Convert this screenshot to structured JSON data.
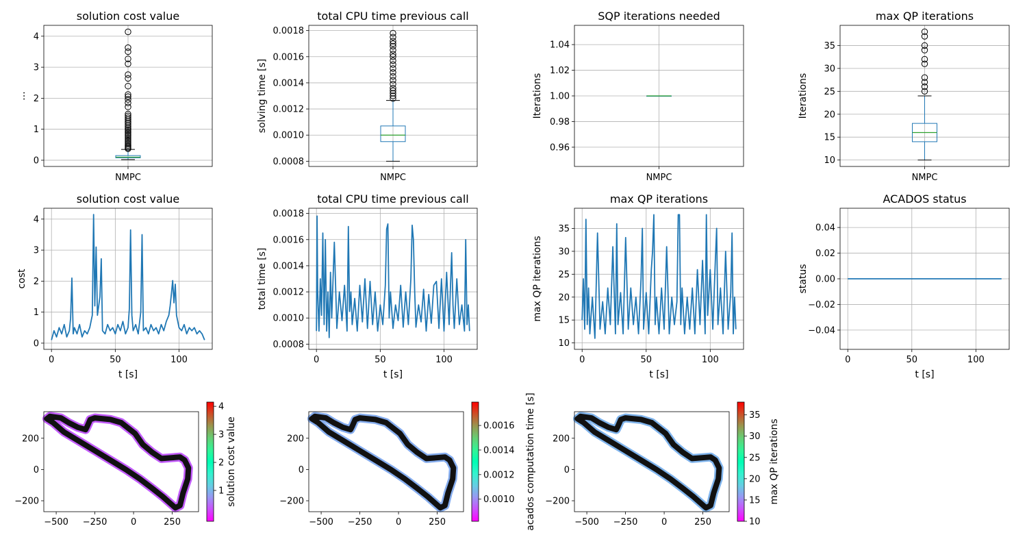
{
  "chart_data": [
    {
      "id": "box_cost",
      "type": "box",
      "title": "solution cost value",
      "xlabel": "",
      "ylabel": "...",
      "categories": [
        "NMPC"
      ],
      "ylim": [
        -0.2,
        4.35
      ],
      "yticks": [
        0,
        1,
        2,
        3,
        4
      ],
      "yticklabels": [
        "0",
        "1",
        "2",
        "3",
        "4"
      ],
      "box": {
        "whislo": 0.02,
        "q1": 0.08,
        "med": 0.1,
        "q3": 0.15,
        "whishi": 0.35
      },
      "fliers": [
        4.14,
        3.63,
        3.5,
        3.27,
        3.11,
        2.76,
        2.64,
        2.39,
        2.12,
        2.05,
        1.96,
        1.85,
        1.72,
        1.49,
        1.43,
        1.37,
        1.31,
        1.25,
        1.2,
        1.14,
        1.08,
        1.03,
        0.98,
        0.93,
        0.88,
        0.83,
        0.78,
        0.73,
        0.68,
        0.63,
        0.58,
        0.53,
        0.48,
        0.44,
        0.4,
        0.37
      ],
      "grid": true
    },
    {
      "id": "box_time",
      "type": "box",
      "title": "total CPU time previous call",
      "xlabel": "",
      "ylabel": "solving time [s]",
      "categories": [
        "NMPC"
      ],
      "ylim": [
        0.00076,
        0.00184
      ],
      "yticks": [
        0.0008,
        0.001,
        0.0012,
        0.0014,
        0.0016,
        0.0018
      ],
      "yticklabels": [
        "0.0008",
        "0.0010",
        "0.0012",
        "0.0014",
        "0.0016",
        "0.0018"
      ],
      "box": {
        "whislo": 0.0008,
        "q1": 0.00095,
        "med": 0.001,
        "q3": 0.00107,
        "whishi": 0.001265
      },
      "fliers": [
        0.00178,
        0.00175,
        0.00172,
        0.0017,
        0.00168,
        0.00165,
        0.00162,
        0.0016,
        0.00157,
        0.00154,
        0.00151,
        0.00148,
        0.00145,
        0.00142,
        0.00139,
        0.00136,
        0.00134,
        0.00132,
        0.0013,
        0.00128
      ],
      "grid": true
    },
    {
      "id": "box_sqp",
      "type": "box",
      "title": "SQP iterations needed",
      "xlabel": "",
      "ylabel": "Iterations",
      "categories": [
        "NMPC"
      ],
      "ylim": [
        0.945,
        1.055
      ],
      "yticks": [
        0.96,
        0.98,
        1.0,
        1.02,
        1.04
      ],
      "yticklabels": [
        "0.96",
        "0.98",
        "1.00",
        "1.02",
        "1.04"
      ],
      "box": {
        "whislo": 1.0,
        "q1": 1.0,
        "med": 1.0,
        "q3": 1.0,
        "whishi": 1.0
      },
      "fliers": [],
      "grid": true
    },
    {
      "id": "box_qp",
      "type": "box",
      "title": "max QP iterations",
      "xlabel": "",
      "ylabel": "Iterations",
      "categories": [
        "NMPC"
      ],
      "ylim": [
        8.6,
        39.4
      ],
      "yticks": [
        10,
        15,
        20,
        25,
        30,
        35
      ],
      "yticklabels": [
        "10",
        "15",
        "20",
        "25",
        "30",
        "35"
      ],
      "box": {
        "whislo": 10,
        "q1": 14,
        "med": 16,
        "q3": 18,
        "whishi": 24
      },
      "fliers": [
        38,
        37,
        35,
        34,
        32,
        31,
        28,
        27,
        26,
        25
      ],
      "grid": true
    },
    {
      "id": "line_cost",
      "type": "line",
      "title": "solution cost value",
      "xlabel": "t [s]",
      "ylabel": "cost",
      "xlim": [
        -6,
        126
      ],
      "xticks": [
        0,
        50,
        100
      ],
      "xticklabels": [
        "0",
        "50",
        "100"
      ],
      "ylim": [
        -0.2,
        4.35
      ],
      "yticks": [
        0,
        1,
        2,
        3,
        4
      ],
      "yticklabels": [
        "0",
        "1",
        "2",
        "3",
        "4"
      ],
      "grid": true,
      "series": [
        {
          "x": [
            0,
            2,
            4,
            6,
            8,
            10,
            12,
            14,
            15,
            16,
            17,
            18,
            20,
            22,
            24,
            26,
            28,
            30,
            32,
            33,
            34,
            35,
            36,
            38,
            39,
            40,
            42,
            44,
            46,
            48,
            50,
            52,
            54,
            56,
            58,
            60,
            61,
            62,
            63,
            64,
            66,
            68,
            70,
            71,
            72,
            74,
            76,
            78,
            80,
            82,
            84,
            86,
            88,
            90,
            92,
            93,
            94,
            95,
            96,
            97,
            98,
            100,
            102,
            104,
            106,
            108,
            110,
            112,
            114,
            116,
            118,
            120
          ],
          "y": [
            0.1,
            0.4,
            0.2,
            0.5,
            0.3,
            0.6,
            0.2,
            0.4,
            0.8,
            2.1,
            0.3,
            0.5,
            0.3,
            0.6,
            0.2,
            0.4,
            0.3,
            0.5,
            0.9,
            4.15,
            1.2,
            3.1,
            0.9,
            1.5,
            2.72,
            0.4,
            0.3,
            0.6,
            0.4,
            0.5,
            0.3,
            0.6,
            0.4,
            0.7,
            0.3,
            0.5,
            1.1,
            3.65,
            0.9,
            0.4,
            0.6,
            0.3,
            1.0,
            3.5,
            0.4,
            0.5,
            0.3,
            0.6,
            0.4,
            0.5,
            0.3,
            0.6,
            0.4,
            0.7,
            0.9,
            1.2,
            1.6,
            2.02,
            1.3,
            1.9,
            0.9,
            0.5,
            0.4,
            0.6,
            0.3,
            0.5,
            0.4,
            0.5,
            0.3,
            0.4,
            0.3,
            0.1
          ]
        }
      ]
    },
    {
      "id": "line_time",
      "type": "line",
      "title": "total CPU time previous call",
      "xlabel": "t [s]",
      "ylabel": "total time [s]",
      "xlim": [
        -6,
        126
      ],
      "xticks": [
        0,
        50,
        100
      ],
      "xticklabels": [
        "0",
        "50",
        "100"
      ],
      "ylim": [
        0.00076,
        0.00184
      ],
      "yticks": [
        0.0008,
        0.001,
        0.0012,
        0.0014,
        0.0016,
        0.0018
      ],
      "yticklabels": [
        "0.0008",
        "0.0010",
        "0.0012",
        "0.0014",
        "0.0016",
        "0.0018"
      ],
      "grid": true,
      "series": [
        {
          "x": [
            0,
            0.5,
            1,
            2,
            3,
            4,
            5,
            6,
            7,
            8,
            9,
            10,
            11,
            12,
            14,
            16,
            18,
            20,
            22,
            24,
            25,
            26,
            27,
            28,
            30,
            32,
            34,
            36,
            38,
            40,
            42,
            44,
            46,
            48,
            50,
            52,
            54,
            55,
            56,
            57,
            58,
            60,
            62,
            64,
            66,
            68,
            70,
            72,
            74,
            75,
            76,
            77,
            78,
            80,
            82,
            84,
            86,
            88,
            90,
            92,
            94,
            96,
            98,
            100,
            102,
            104,
            106,
            107,
            108,
            110,
            112,
            114,
            116,
            117,
            118,
            119,
            120
          ],
          "y": [
            0.0009,
            0.00178,
            0.0012,
            0.0009,
            0.0013,
            0.00102,
            0.00165,
            0.00095,
            0.0016,
            0.0009,
            0.0012,
            0.00085,
            0.00135,
            0.001,
            0.00158,
            0.00092,
            0.0012,
            0.00098,
            0.00125,
            0.0009,
            0.0017,
            0.00105,
            0.0012,
            0.00095,
            0.00115,
            0.0009,
            0.00125,
            0.00097,
            0.0013,
            0.00092,
            0.00128,
            0.00095,
            0.0012,
            0.0009,
            0.0011,
            0.00095,
            0.00125,
            0.00168,
            0.00172,
            0.001,
            0.0012,
            0.00092,
            0.0011,
            0.00098,
            0.00125,
            0.00093,
            0.0012,
            0.00095,
            0.0013,
            0.00171,
            0.0016,
            0.0012,
            0.00093,
            0.0011,
            0.00097,
            0.00122,
            0.0009,
            0.00118,
            0.00096,
            0.00125,
            0.00128,
            0.00092,
            0.0013,
            0.0009,
            0.00135,
            0.00095,
            0.0015,
            0.0011,
            0.00092,
            0.0013,
            0.00095,
            0.0011,
            0.0009,
            0.0016,
            0.00095,
            0.0011,
            0.0009
          ]
        }
      ]
    },
    {
      "id": "line_qp",
      "type": "line",
      "title": "max QP iterations",
      "xlabel": "t [s]",
      "ylabel": "max QP iterations",
      "xlim": [
        -6,
        126
      ],
      "xticks": [
        0,
        50,
        100
      ],
      "xticklabels": [
        "0",
        "50",
        "100"
      ],
      "ylim": [
        8.6,
        39.4
      ],
      "yticks": [
        10,
        15,
        20,
        25,
        30,
        35
      ],
      "yticklabels": [
        "10",
        "15",
        "20",
        "25",
        "30",
        "35"
      ],
      "grid": true,
      "series": [
        {
          "x": [
            0,
            1,
            2,
            3,
            4,
            5,
            6,
            8,
            10,
            12,
            14,
            16,
            18,
            20,
            22,
            24,
            26,
            27,
            28,
            30,
            32,
            34,
            36,
            38,
            40,
            42,
            44,
            46,
            47,
            48,
            50,
            52,
            54,
            55,
            56,
            57,
            58,
            60,
            62,
            64,
            66,
            68,
            70,
            72,
            74,
            75,
            76,
            77,
            78,
            80,
            82,
            84,
            86,
            88,
            90,
            92,
            94,
            96,
            97,
            98,
            100,
            102,
            104,
            105,
            106,
            108,
            110,
            112,
            114,
            116,
            117,
            118,
            119,
            120
          ],
          "y": [
            15,
            24,
            13,
            37,
            14,
            22,
            12,
            20,
            11,
            34,
            13,
            19,
            12,
            22,
            14,
            31,
            12,
            36,
            14,
            21,
            12,
            33,
            13,
            22,
            14,
            20,
            12,
            24,
            35,
            13,
            21,
            12,
            26,
            30,
            38,
            14,
            20,
            12,
            22,
            13,
            31,
            12,
            20,
            14,
            19,
            38,
            38,
            14,
            22,
            12,
            20,
            13,
            22,
            12,
            26,
            14,
            28,
            12,
            38,
            16,
            26,
            13,
            28,
            35,
            14,
            22,
            12,
            30,
            13,
            21,
            34,
            12,
            20,
            13
          ]
        }
      ]
    },
    {
      "id": "line_status",
      "type": "line",
      "title": "ACADOS status",
      "xlabel": "t [s]",
      "ylabel": "status",
      "xlim": [
        -6,
        126
      ],
      "xticks": [
        0,
        50,
        100
      ],
      "xticklabels": [
        "0",
        "50",
        "100"
      ],
      "ylim": [
        -0.055,
        0.055
      ],
      "yticks": [
        -0.04,
        -0.02,
        0.0,
        0.02,
        0.04
      ],
      "yticklabels": [
        "−0.04",
        "−0.02",
        "0.00",
        "0.02",
        "0.04"
      ],
      "grid": true,
      "series": [
        {
          "x": [
            0,
            120
          ],
          "y": [
            0,
            0
          ]
        }
      ]
    },
    {
      "id": "track_cost",
      "type": "scatter",
      "title": "",
      "xlabel": "",
      "ylabel": "",
      "xlim": [
        -580,
        420
      ],
      "xticks": [
        -500,
        -250,
        0,
        250
      ],
      "xticklabels": [
        "−500",
        "−250",
        "0",
        "250"
      ],
      "ylim": [
        -270,
        370
      ],
      "yticks": [
        -200,
        0,
        200
      ],
      "yticklabels": [
        "−200",
        "0",
        "200"
      ],
      "colorbar": {
        "label": "solution cost value",
        "min": -0.1,
        "max": 4.15,
        "ticks": [
          1,
          2,
          3,
          4
        ],
        "ticklabels": [
          "1",
          "2",
          "3",
          "4"
        ]
      },
      "track_color_value": 0.4
    },
    {
      "id": "track_time",
      "type": "scatter",
      "title": "",
      "xlabel": "",
      "ylabel": "",
      "xlim": [
        -580,
        420
      ],
      "xticks": [
        -500,
        -250,
        0,
        250
      ],
      "xticklabels": [
        "−500",
        "−250",
        "0",
        "250"
      ],
      "ylim": [
        -270,
        370
      ],
      "yticks": [
        -200,
        0,
        200
      ],
      "yticklabels": [
        "−200",
        "0",
        "200"
      ],
      "colorbar": {
        "label": "acados computation time [s]",
        "min": 0.00082,
        "max": 0.00179,
        "ticks": [
          0.001,
          0.0012,
          0.0014,
          0.0016
        ],
        "ticklabels": [
          "0.0010",
          "0.0012",
          "0.0014",
          "0.0016"
        ]
      },
      "track_color_value": 0.00105
    },
    {
      "id": "track_qp",
      "type": "scatter",
      "title": "",
      "xlabel": "",
      "ylabel": "",
      "xlim": [
        -580,
        420
      ],
      "xticks": [
        -500,
        -250,
        0,
        250
      ],
      "xticklabels": [
        "−500",
        "−250",
        "0",
        "250"
      ],
      "ylim": [
        -270,
        370
      ],
      "yticks": [
        -200,
        0,
        200
      ],
      "yticklabels": [
        "−200",
        "0",
        "200"
      ],
      "colorbar": {
        "label": "max QP iterations",
        "min": 10,
        "max": 38,
        "ticks": [
          10,
          15,
          20,
          25,
          30,
          35
        ],
        "ticklabels": [
          "10",
          "15",
          "20",
          "25",
          "30",
          "35"
        ]
      },
      "track_color_value": 17
    }
  ],
  "track_path": {
    "x": [
      -520,
      -560,
      -540,
      -470,
      -420,
      -360,
      -310,
      -300,
      -280,
      -250,
      -150,
      -80,
      10,
      60,
      120,
      180,
      240,
      300,
      330,
      355,
      350,
      320,
      300,
      270,
      190,
      120,
      40,
      -50,
      -150,
      -250,
      -350,
      -450,
      -520
    ],
    "y": [
      300,
      325,
      340,
      330,
      300,
      270,
      255,
      275,
      320,
      330,
      320,
      300,
      230,
      160,
      110,
      70,
      75,
      80,
      60,
      10,
      -60,
      -150,
      -230,
      -245,
      -175,
      -120,
      -60,
      0,
      60,
      120,
      180,
      240,
      300
    ]
  },
  "colors": {
    "line": "#1f77b4",
    "median": "#2ca02c",
    "grid": "#b0b0b0",
    "track_outline": "#111111"
  }
}
